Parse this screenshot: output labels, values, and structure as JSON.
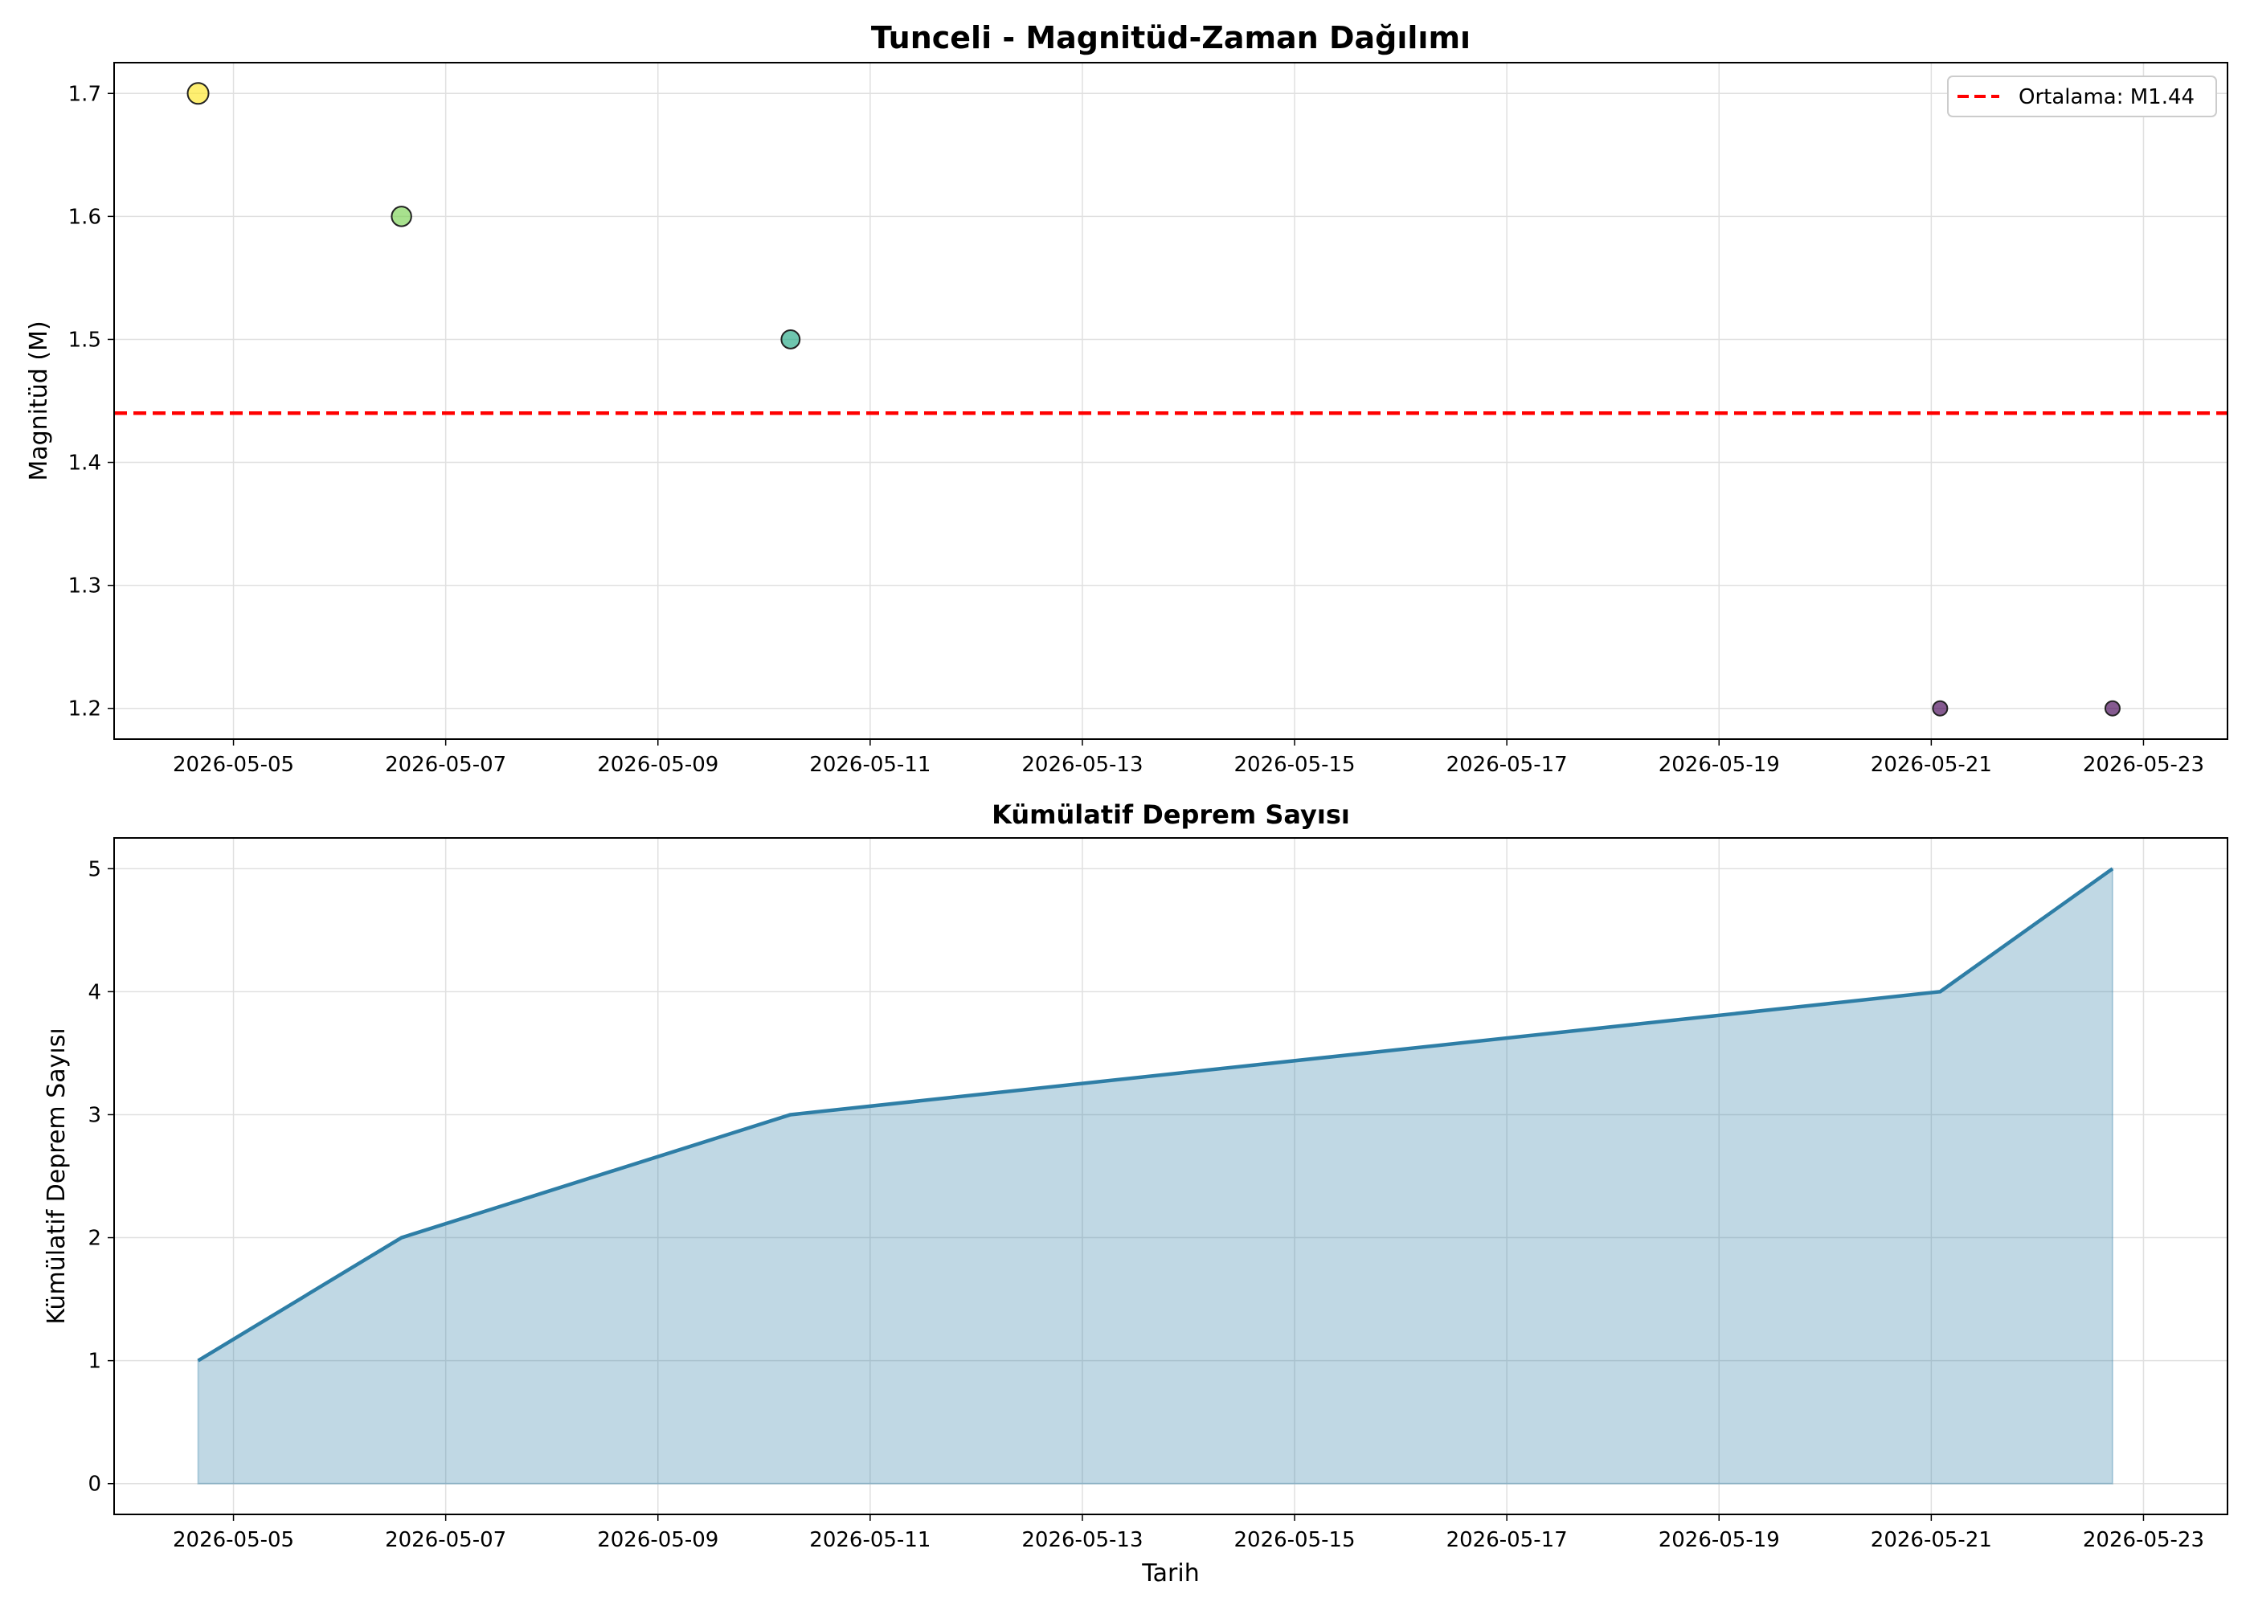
{
  "chart_data": [
    {
      "type": "scatter",
      "title": "Tunceli - Magnitüd-Zaman Dağılımı",
      "xlabel": "",
      "ylabel": "Magnitüd (M)",
      "x_ticks": [
        "2026-05-05",
        "2026-05-07",
        "2026-05-09",
        "2026-05-11",
        "2026-05-13",
        "2026-05-15",
        "2026-05-17",
        "2026-05-19",
        "2026-05-21",
        "2026-05-23"
      ],
      "y_ticks": [
        "1.2",
        "1.3",
        "1.4",
        "1.5",
        "1.6",
        "1.7"
      ],
      "xlim": [
        "2026-05-03T21:00",
        "2026-05-23T19:00"
      ],
      "ylim": [
        1.175,
        1.725
      ],
      "grid": true,
      "legend": "top-right",
      "points": [
        {
          "x": "2026-05-04T16:00",
          "y": 1.7,
          "color": "#fde725"
        },
        {
          "x": "2026-05-06T14:00",
          "y": 1.6,
          "color": "#7ad151"
        },
        {
          "x": "2026-05-10T06:00",
          "y": 1.5,
          "color": "#22a884"
        },
        {
          "x": "2026-05-21T02:00",
          "y": 1.2,
          "color": "#440154"
        },
        {
          "x": "2026-05-22T17:00",
          "y": 1.2,
          "color": "#440154"
        }
      ],
      "mean_line": {
        "value": 1.44,
        "label": "Ortalama: M1.44",
        "color": "#ff0000"
      }
    },
    {
      "type": "area",
      "title": "Kümülatif Deprem Sayısı",
      "xlabel": "Tarih",
      "ylabel": "Kümülatif Deprem Sayısı",
      "x_ticks": [
        "2026-05-05",
        "2026-05-07",
        "2026-05-09",
        "2026-05-11",
        "2026-05-13",
        "2026-05-15",
        "2026-05-17",
        "2026-05-19",
        "2026-05-21",
        "2026-05-23"
      ],
      "y_ticks": [
        "0",
        "1",
        "2",
        "3",
        "4",
        "5"
      ],
      "xlim": [
        "2026-05-03T21:00",
        "2026-05-23T19:00"
      ],
      "ylim": [
        -0.25,
        5.25
      ],
      "grid": true,
      "x": [
        "2026-05-04T16:00",
        "2026-05-06T14:00",
        "2026-05-10T06:00",
        "2026-05-21T02:00",
        "2026-05-22T17:00"
      ],
      "values": [
        1,
        2,
        3,
        4,
        5
      ],
      "line_color": "#2e7ea6",
      "fill_color": "#2e7ea6"
    }
  ]
}
